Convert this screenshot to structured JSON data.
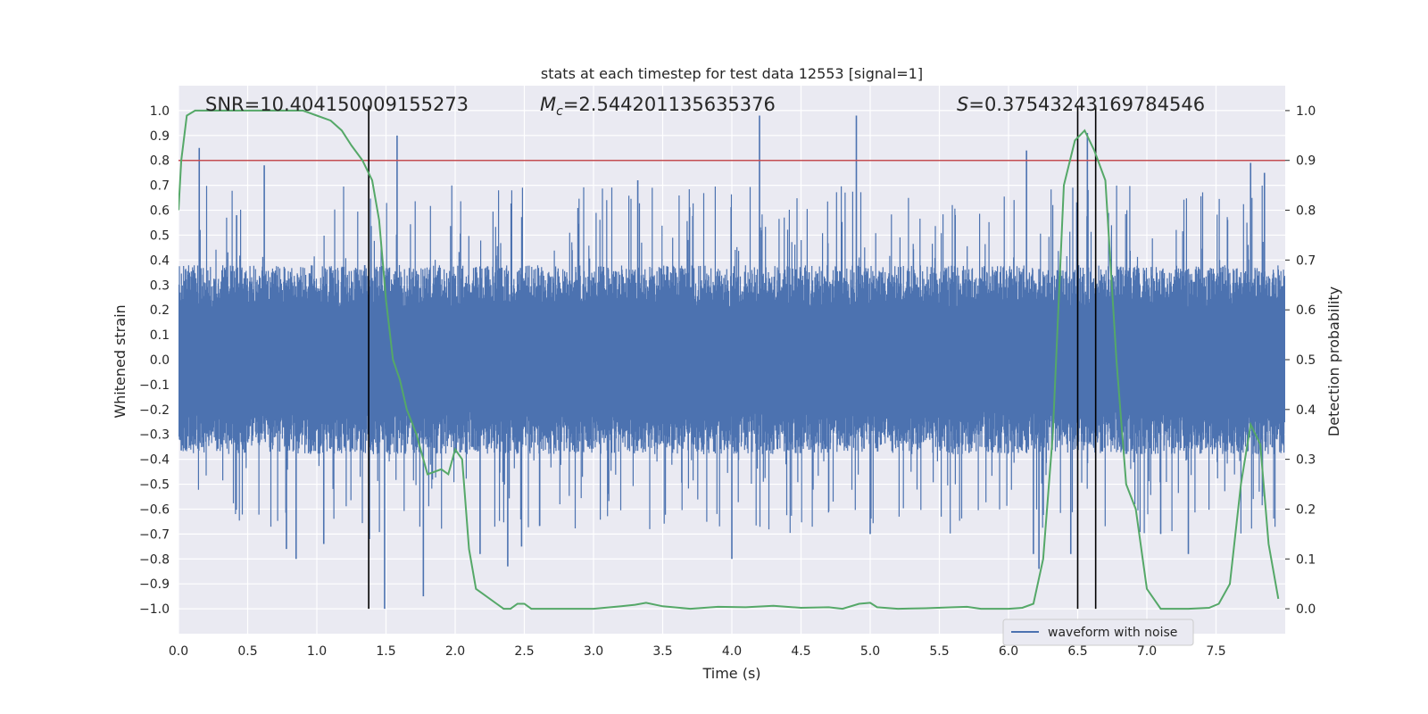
{
  "chart_data": {
    "type": "line",
    "title": "stats at each timestep for test data 12553 [signal=1]",
    "xlabel": "Time (s)",
    "ylabel_left": "Whitened strain",
    "ylabel_right": "Detection probability",
    "xlim": [
      0.0,
      8.0
    ],
    "ylim_left": [
      -1.1,
      1.1
    ],
    "ylim_right": [
      -0.05,
      1.05
    ],
    "x_ticks": [
      0.0,
      0.5,
      1.0,
      1.5,
      2.0,
      2.5,
      3.0,
      3.5,
      4.0,
      4.5,
      5.0,
      5.5,
      6.0,
      6.5,
      7.0,
      7.5
    ],
    "x_tick_labels": [
      "0.0",
      "0.5",
      "1.0",
      "1.5",
      "2.0",
      "2.5",
      "3.0",
      "3.5",
      "4.0",
      "4.5",
      "5.0",
      "5.5",
      "6.0",
      "6.5",
      "7.0",
      "7.5"
    ],
    "y_left_ticks": [
      1.0,
      0.9,
      0.8,
      0.7,
      0.6,
      0.5,
      0.4,
      0.3,
      0.2,
      0.1,
      0.0,
      -0.1,
      -0.2,
      -0.3,
      -0.4,
      -0.5,
      -0.6,
      -0.7,
      -0.8,
      -0.9,
      -1.0
    ],
    "y_left_tick_labels": [
      "1.0",
      "0.9",
      "0.8",
      "0.7",
      "0.6",
      "0.5",
      "0.4",
      "0.3",
      "0.2",
      "0.1",
      "0.0",
      "−0.1",
      "−0.2",
      "−0.3",
      "−0.4",
      "−0.5",
      "−0.6",
      "−0.7",
      "−0.8",
      "−0.9",
      "−1.0"
    ],
    "y_right_ticks": [
      1.0,
      0.9,
      0.8,
      0.7,
      0.6,
      0.5,
      0.4,
      0.3,
      0.2,
      0.1,
      0.0
    ],
    "y_right_tick_labels": [
      "1.0",
      "0.9",
      "0.8",
      "0.7",
      "0.6",
      "0.5",
      "0.4",
      "0.3",
      "0.2",
      "0.1",
      "0.0"
    ],
    "annotations": {
      "snr": "SNR=10.404150009155273",
      "mc": "=2.544201135635376",
      "mc_symbol": "M",
      "mc_sub": "c",
      "s": "=0.37543243169784546",
      "s_symbol": "S"
    },
    "threshold": {
      "value_right_axis": 0.9,
      "color": "#c44e52"
    },
    "vertical_lines": [
      1.375,
      6.5,
      6.63
    ],
    "legend": {
      "label": "waveform with noise",
      "placement": "lower-right"
    },
    "waveform": {
      "name": "waveform with noise",
      "color": "#4c72b0",
      "duration": 8.0,
      "envelope": 0.38,
      "spikes": [
        [
          0.15,
          0.85
        ],
        [
          0.42,
          0.58
        ],
        [
          0.62,
          0.78
        ],
        [
          0.78,
          -0.76
        ],
        [
          0.85,
          -0.8
        ],
        [
          1.05,
          -0.74
        ],
        [
          1.38,
          -0.72
        ],
        [
          1.49,
          -1.0
        ],
        [
          1.58,
          0.9
        ],
        [
          1.77,
          -0.95
        ],
        [
          2.18,
          -0.78
        ],
        [
          2.38,
          -0.83
        ],
        [
          2.48,
          -0.75
        ],
        [
          3.32,
          0.72
        ],
        [
          4.0,
          -0.8
        ],
        [
          4.2,
          0.98
        ],
        [
          4.9,
          0.98
        ],
        [
          5.0,
          -0.7
        ],
        [
          6.13,
          0.84
        ],
        [
          6.18,
          -0.78
        ],
        [
          6.22,
          -0.84
        ],
        [
          6.57,
          0.91
        ],
        [
          6.45,
          -0.78
        ],
        [
          7.1,
          -0.7
        ],
        [
          7.3,
          -0.78
        ],
        [
          7.75,
          0.79
        ],
        [
          7.85,
          0.75
        ]
      ]
    },
    "detection_probability": {
      "color": "#55a868",
      "x": [
        0.0,
        0.02,
        0.06,
        0.12,
        0.2,
        0.3,
        0.45,
        0.6,
        0.75,
        0.9,
        1.0,
        1.1,
        1.18,
        1.25,
        1.33,
        1.4,
        1.45,
        1.5,
        1.55,
        1.6,
        1.65,
        1.72,
        1.8,
        1.9,
        1.95,
        2.0,
        2.05,
        2.1,
        2.15,
        2.2,
        2.3,
        2.35,
        2.4,
        2.45,
        2.5,
        2.55,
        2.6,
        2.7,
        2.8,
        3.0,
        3.2,
        3.3,
        3.38,
        3.5,
        3.7,
        3.9,
        4.1,
        4.3,
        4.5,
        4.7,
        4.8,
        4.92,
        5.0,
        5.05,
        5.2,
        5.4,
        5.6,
        5.7,
        5.8,
        6.0,
        6.1,
        6.18,
        6.25,
        6.32,
        6.4,
        6.48,
        6.55,
        6.62,
        6.7,
        6.78,
        6.85,
        6.92,
        7.0,
        7.1,
        7.3,
        7.45,
        7.52,
        7.6,
        7.68,
        7.75,
        7.82,
        7.88,
        7.95
      ],
      "y": [
        0.8,
        0.9,
        0.99,
        1.0,
        1.0,
        1.0,
        1.0,
        1.0,
        1.0,
        1.0,
        0.99,
        0.98,
        0.96,
        0.93,
        0.9,
        0.86,
        0.78,
        0.62,
        0.5,
        0.46,
        0.4,
        0.35,
        0.27,
        0.28,
        0.27,
        0.32,
        0.3,
        0.12,
        0.04,
        0.03,
        0.01,
        0.0,
        0.0,
        0.01,
        0.01,
        0.0,
        0.0,
        0.0,
        0.0,
        0.0,
        0.005,
        0.008,
        0.012,
        0.005,
        0.0,
        0.004,
        0.003,
        0.006,
        0.002,
        0.003,
        0.0,
        0.01,
        0.012,
        0.003,
        0.0,
        0.001,
        0.003,
        0.004,
        0.0,
        0.0,
        0.002,
        0.01,
        0.1,
        0.35,
        0.85,
        0.94,
        0.96,
        0.92,
        0.86,
        0.5,
        0.25,
        0.2,
        0.04,
        0.0,
        0.0,
        0.002,
        0.01,
        0.05,
        0.25,
        0.37,
        0.33,
        0.13,
        0.02
      ]
    }
  }
}
